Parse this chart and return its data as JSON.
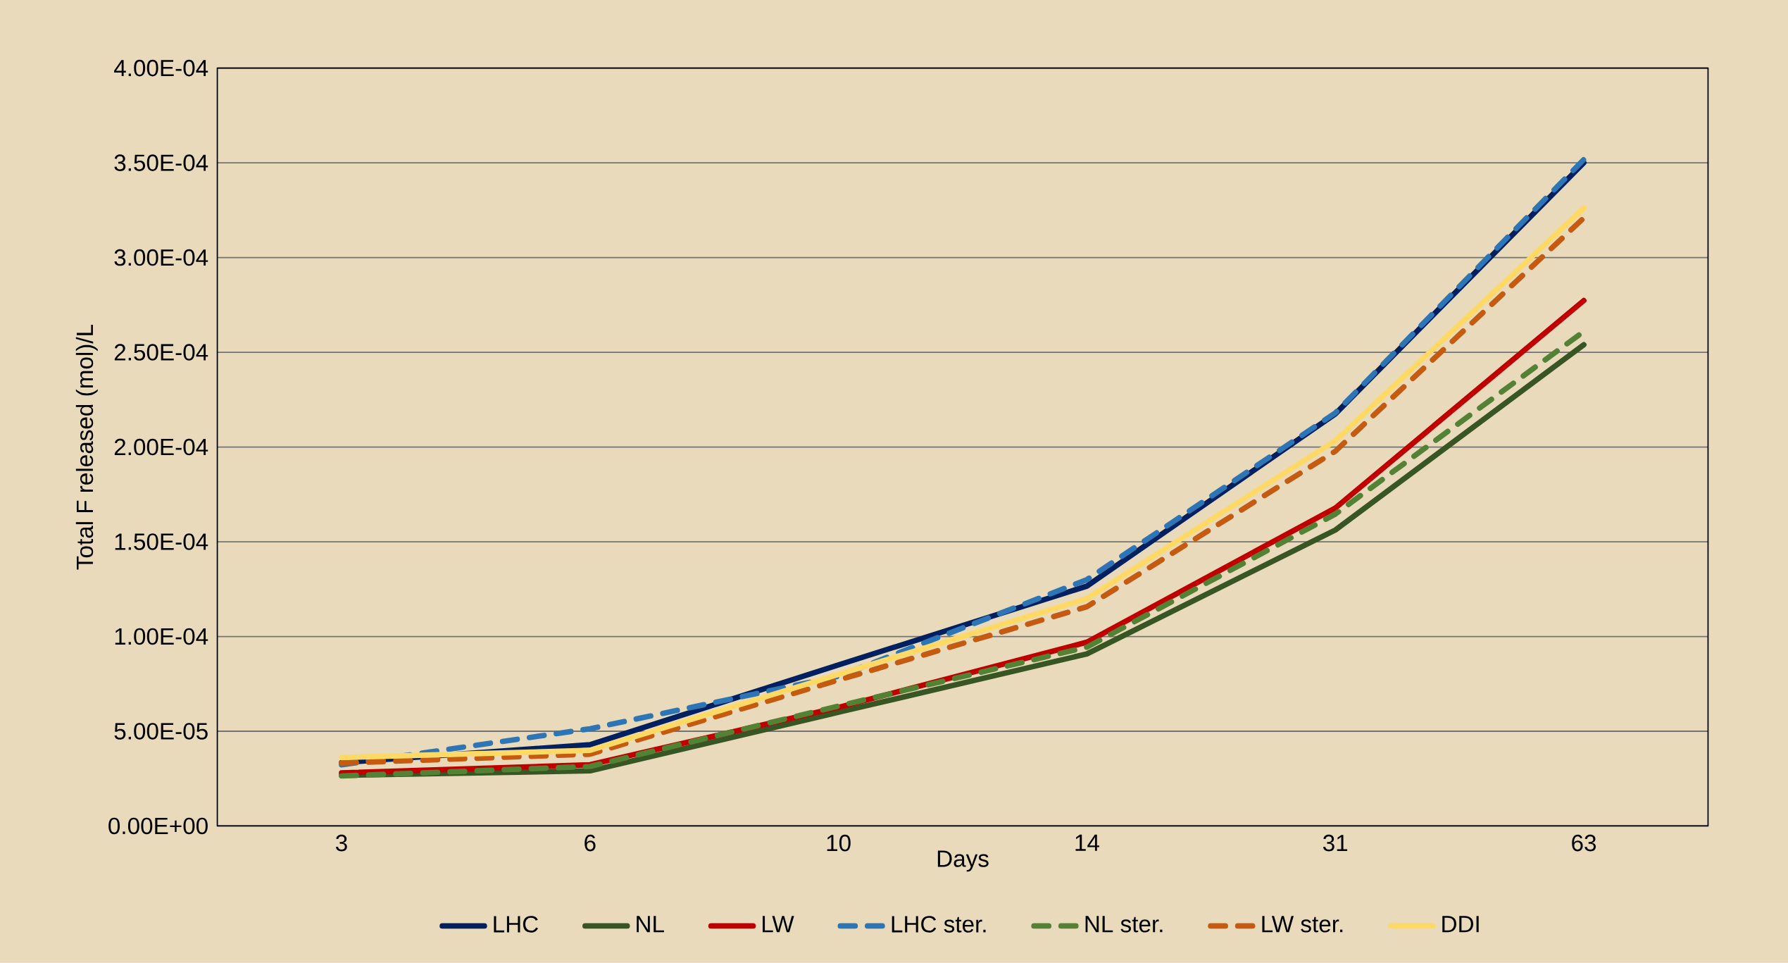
{
  "chart_data": {
    "type": "line",
    "xlabel": "Days",
    "ylabel": "Total F released (mol)/L",
    "categories": [
      "3",
      "6",
      "10",
      "14",
      "31",
      "63"
    ],
    "series": [
      {
        "name": "LHC",
        "color": "#002060",
        "line_style": "solid",
        "values": [
          3.34e-05,
          4.29e-05,
          8.5e-05,
          0.0001266,
          0.0002175,
          0.00035
        ]
      },
      {
        "name": "NL",
        "color": "#375623",
        "line_style": "solid",
        "values": [
          2.67e-05,
          2.91e-05,
          6e-05,
          9.08e-05,
          0.0001562,
          0.000254
        ]
      },
      {
        "name": "LW",
        "color": "#c00000",
        "line_style": "solid",
        "values": [
          2.8e-05,
          3.23e-05,
          6.26e-05,
          9.7e-05,
          0.0001678,
          0.0002773
        ]
      },
      {
        "name": "LHC ster.",
        "color": "#2e75b6",
        "line_style": "dashed",
        "values": [
          3.23e-05,
          5.13e-05,
          7.9e-05,
          0.00013,
          0.000218,
          0.0003517
        ]
      },
      {
        "name": "NL ster.",
        "color": "#548235",
        "line_style": "dashed",
        "values": [
          2.64e-05,
          3.14e-05,
          6.33e-05,
          9.44e-05,
          0.0001646,
          0.000261
        ]
      },
      {
        "name": "LW ster.",
        "color": "#c55a11",
        "line_style": "dashed",
        "values": [
          3.32e-05,
          3.79e-05,
          7.7e-05,
          0.0001157,
          0.0001978,
          0.0003209
        ]
      },
      {
        "name": "DDI",
        "color": "#ffd966",
        "line_style": "solid",
        "values": [
          3.61e-05,
          3.99e-05,
          8e-05,
          0.00012,
          0.0002033,
          0.0003261
        ]
      }
    ],
    "ylim": [
      0,
      0.0004
    ],
    "yticks": [
      {
        "value": 0,
        "label": "0.00E+00"
      },
      {
        "value": 5e-05,
        "label": "5.00E-05"
      },
      {
        "value": 0.0001,
        "label": "1.00E-04"
      },
      {
        "value": 0.00015,
        "label": "1.50E-04"
      },
      {
        "value": 0.0002,
        "label": "2.00E-04"
      },
      {
        "value": 0.00025,
        "label": "2.50E-04"
      },
      {
        "value": 0.0003,
        "label": "3.00E-04"
      },
      {
        "value": 0.00035,
        "label": "3.50E-04"
      },
      {
        "value": 0.0004,
        "label": "4.00E-04"
      }
    ],
    "grid": "y",
    "legend": "bottom",
    "marker": "none"
  }
}
